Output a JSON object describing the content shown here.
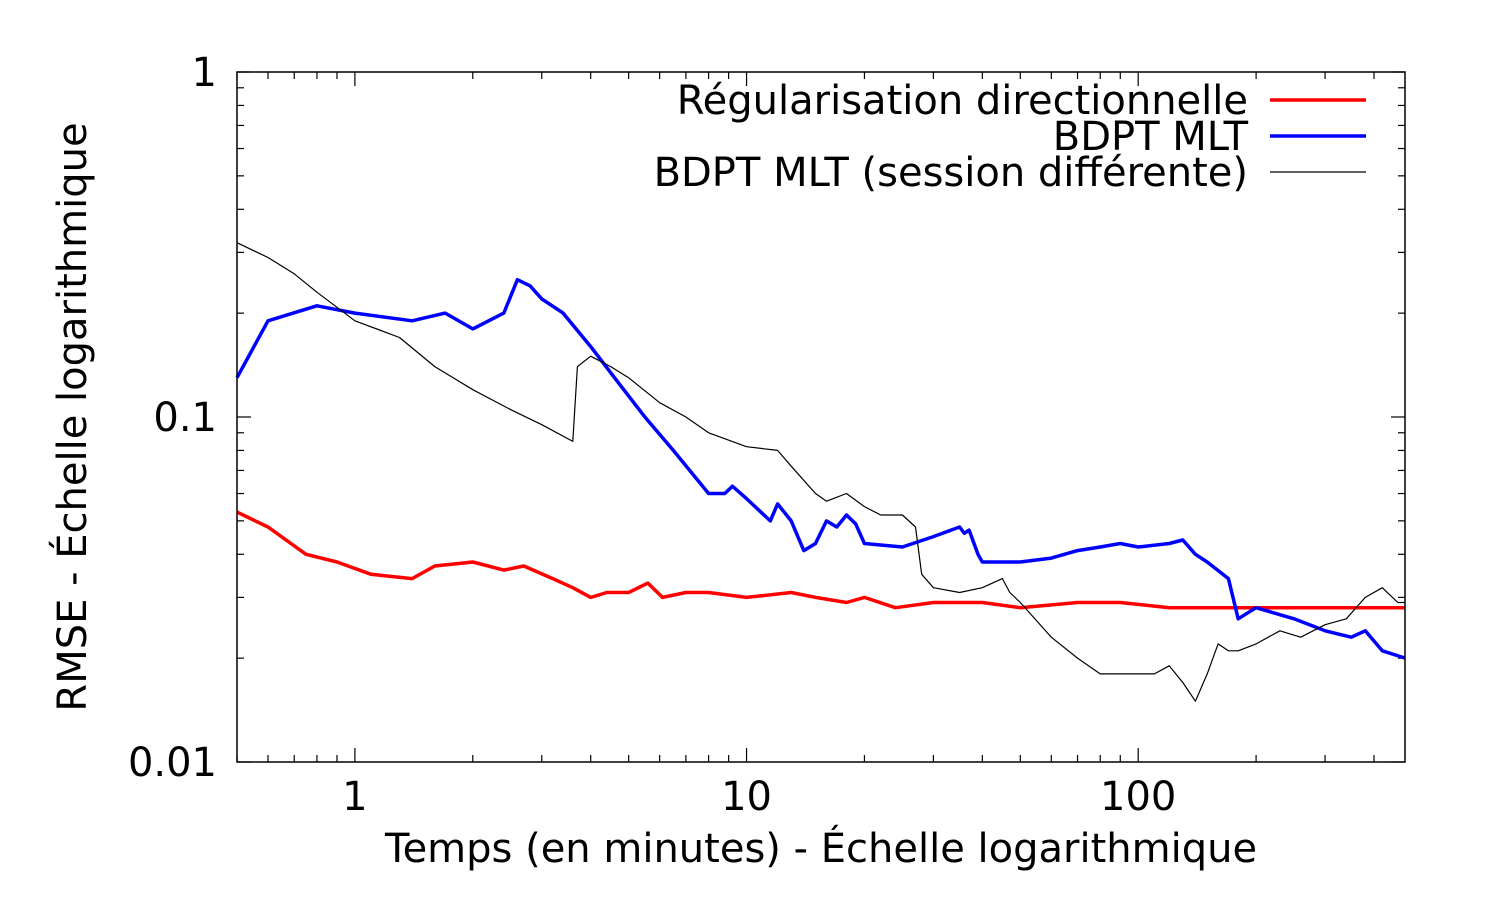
{
  "chart_data": {
    "type": "line",
    "title": "",
    "xlabel": "Temps (en minutes) - Échelle logarithmique",
    "ylabel": "RMSE - Échelle logarithmique",
    "x_scale": "log",
    "y_scale": "log",
    "xlim": [
      0.5,
      480
    ],
    "ylim": [
      0.01,
      1
    ],
    "x_ticks": [
      1,
      10,
      100
    ],
    "x_tick_labels": [
      "1",
      "10",
      "100"
    ],
    "y_ticks": [
      0.01,
      0.1,
      1
    ],
    "y_tick_labels": [
      "0.01",
      "0.1",
      "1"
    ],
    "grid": false,
    "legend_position": "top-right",
    "series": [
      {
        "name": "Régularisation directionnelle",
        "color": "#ff0000",
        "x": [
          0.5,
          0.6,
          0.75,
          0.9,
          1.1,
          1.4,
          1.6,
          2.0,
          2.4,
          2.7,
          3.2,
          3.6,
          4.0,
          4.4,
          5.0,
          5.6,
          6.1,
          7.0,
          8.0,
          10.0,
          13.0,
          15.0,
          18.0,
          20.0,
          24.0,
          30.0,
          40.0,
          50.0,
          70.0,
          90.0,
          120.0,
          200.0,
          300.0,
          400.0,
          480.0
        ],
        "y": [
          0.053,
          0.048,
          0.04,
          0.038,
          0.035,
          0.034,
          0.037,
          0.038,
          0.036,
          0.037,
          0.034,
          0.032,
          0.03,
          0.031,
          0.031,
          0.033,
          0.03,
          0.031,
          0.031,
          0.03,
          0.031,
          0.03,
          0.029,
          0.03,
          0.028,
          0.029,
          0.029,
          0.028,
          0.029,
          0.029,
          0.028,
          0.028,
          0.028,
          0.028,
          0.028
        ]
      },
      {
        "name": "BDPT MLT",
        "color": "#0000ff",
        "x": [
          0.5,
          0.6,
          0.8,
          1.0,
          1.4,
          1.7,
          2.0,
          2.4,
          2.6,
          2.8,
          3.0,
          3.4,
          4.0,
          4.6,
          5.5,
          6.5,
          8.0,
          8.8,
          9.2,
          10.0,
          11.5,
          12.0,
          13.0,
          14.0,
          15.0,
          16.0,
          17.0,
          18.0,
          19.0,
          20.0,
          25.0,
          30.0,
          35.0,
          36.0,
          37.0,
          39.0,
          40.0,
          50.0,
          60.0,
          70.0,
          80.0,
          90.0,
          100.0,
          120.0,
          130.0,
          140.0,
          150.0,
          170.0,
          180.0,
          200.0,
          250.0,
          300.0,
          350.0,
          380.0,
          420.0,
          480.0
        ],
        "y": [
          0.13,
          0.19,
          0.21,
          0.2,
          0.19,
          0.2,
          0.18,
          0.2,
          0.25,
          0.24,
          0.22,
          0.2,
          0.16,
          0.13,
          0.1,
          0.08,
          0.06,
          0.06,
          0.063,
          0.058,
          0.05,
          0.056,
          0.05,
          0.041,
          0.043,
          0.05,
          0.048,
          0.052,
          0.049,
          0.043,
          0.042,
          0.045,
          0.048,
          0.046,
          0.047,
          0.04,
          0.038,
          0.038,
          0.039,
          0.041,
          0.042,
          0.043,
          0.042,
          0.043,
          0.044,
          0.04,
          0.038,
          0.034,
          0.026,
          0.028,
          0.026,
          0.024,
          0.023,
          0.024,
          0.021,
          0.02
        ]
      },
      {
        "name": "BDPT MLT (session différente)",
        "color": "#000000",
        "x": [
          0.5,
          0.6,
          0.7,
          0.8,
          1.0,
          1.3,
          1.6,
          2.0,
          2.5,
          3.0,
          3.6,
          3.7,
          4.0,
          4.5,
          5.0,
          6.0,
          7.0,
          8.0,
          10.0,
          12.0,
          13.0,
          15.0,
          16.0,
          18.0,
          20.0,
          22.0,
          25.0,
          27.0,
          28.0,
          30.0,
          35.0,
          40.0,
          45.0,
          47.0,
          50.0,
          60.0,
          70.0,
          80.0,
          90.0,
          100.0,
          110.0,
          120.0,
          130.0,
          140.0,
          150.0,
          160.0,
          170.0,
          180.0,
          200.0,
          230.0,
          260.0,
          300.0,
          340.0,
          380.0,
          420.0,
          460.0,
          480.0
        ],
        "y": [
          0.32,
          0.29,
          0.26,
          0.23,
          0.19,
          0.17,
          0.14,
          0.12,
          0.105,
          0.095,
          0.085,
          0.14,
          0.15,
          0.14,
          0.13,
          0.11,
          0.1,
          0.09,
          0.082,
          0.08,
          0.072,
          0.06,
          0.057,
          0.06,
          0.055,
          0.052,
          0.052,
          0.048,
          0.035,
          0.032,
          0.031,
          0.032,
          0.034,
          0.031,
          0.029,
          0.023,
          0.02,
          0.018,
          0.018,
          0.018,
          0.018,
          0.019,
          0.017,
          0.015,
          0.018,
          0.022,
          0.021,
          0.021,
          0.022,
          0.024,
          0.023,
          0.025,
          0.026,
          0.03,
          0.032,
          0.029,
          0.029
        ]
      }
    ]
  }
}
